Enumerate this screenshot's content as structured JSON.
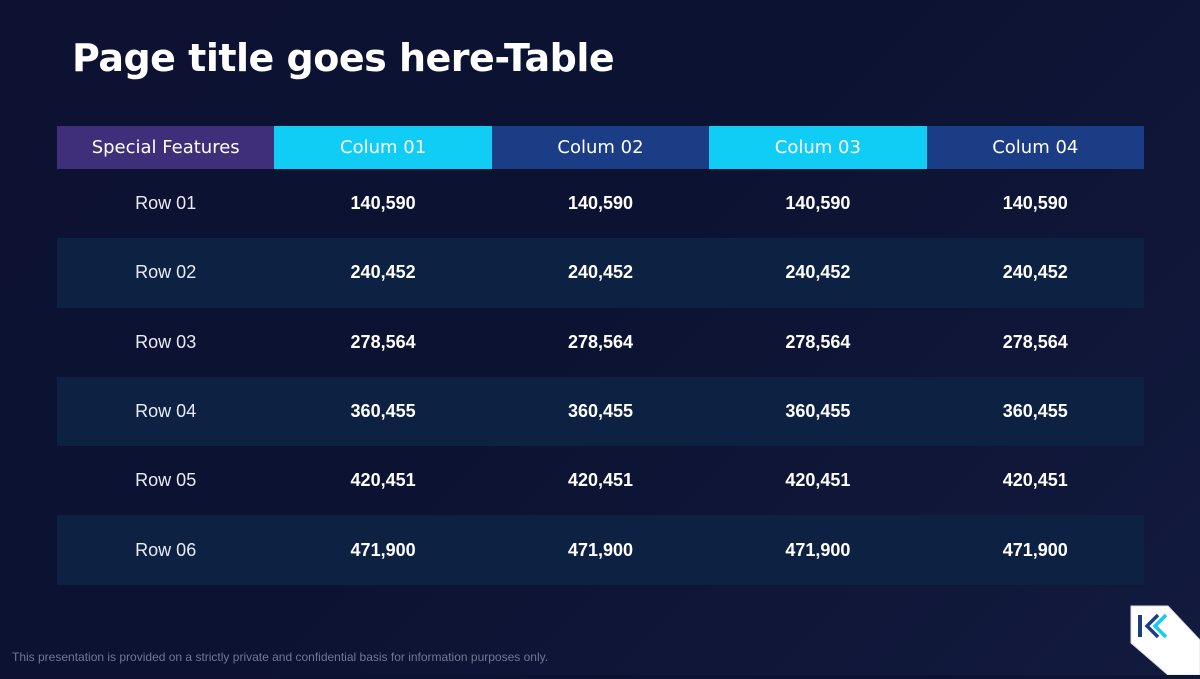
{
  "slide": {
    "title": "Page title goes here-Table",
    "footer": "This presentation is provided on a strictly private and confidential basis for information purposes only.",
    "logo_icon": "k-logo-icon"
  },
  "table": {
    "headers": [
      "Special Features",
      "Colum 01",
      "Colum 02",
      "Colum 03",
      "Colum 04"
    ],
    "header_colors": [
      "#3f2f7a",
      "#0fcdf5",
      "#1b3d86",
      "#0fcdf5",
      "#1b3d86"
    ],
    "rows": [
      {
        "label": "Row 01",
        "values": [
          "140,590",
          "140,590",
          "140,590",
          "140,590"
        ]
      },
      {
        "label": "Row 02",
        "values": [
          "240,452",
          "240,452",
          "240,452",
          "240,452"
        ]
      },
      {
        "label": "Row 03",
        "values": [
          "278,564",
          "278,564",
          "278,564",
          "278,564"
        ]
      },
      {
        "label": "Row 04",
        "values": [
          "360,455",
          "360,455",
          "360,455",
          "360,455"
        ]
      },
      {
        "label": "Row 05",
        "values": [
          "420,451",
          "420,451",
          "420,451",
          "420,451"
        ]
      },
      {
        "label": "Row 06",
        "values": [
          "471,900",
          "471,900",
          "471,900",
          "471,900"
        ]
      }
    ]
  },
  "colors": {
    "background": "#0d1232",
    "stripe": "#0d2143",
    "accent_cyan": "#0fcdf5",
    "accent_blue": "#1b3d86",
    "accent_purple": "#3f2f7a"
  }
}
